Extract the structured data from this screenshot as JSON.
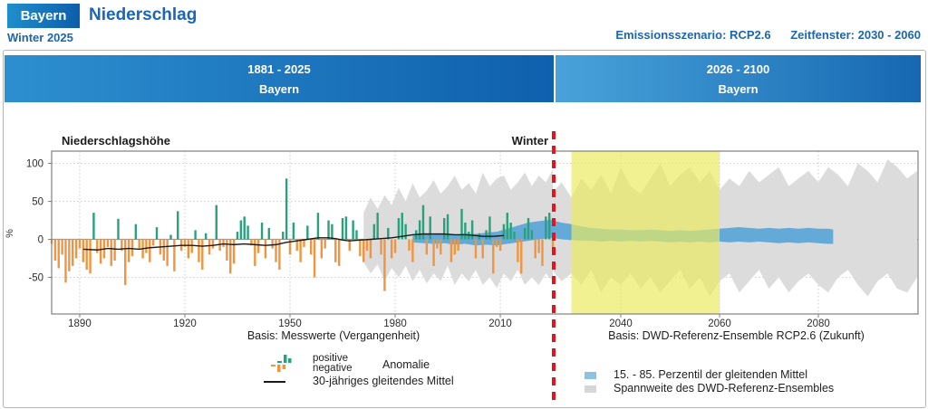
{
  "header": {
    "badge": "Bayern",
    "title": "Niederschlag",
    "subtitle": "Winter 2025",
    "scenario": "Emissionsszenario: RCP2.6",
    "time_window": "Zeitfenster: 2030 - 2060"
  },
  "panels": [
    {
      "period": "1881 - 2025",
      "region": "Bayern"
    },
    {
      "period": "2026 - 2100",
      "region": "Bayern"
    }
  ],
  "legend": {
    "positive": "positive",
    "negative": "negative",
    "anomaly": "Anomalie",
    "moving_mean": "30-jähriges gleitendes Mittel",
    "percentile": "15. - 85. Perzentil der gleitenden Mittel",
    "ensemble": "Spannweite des DWD-Referenz-Ensembles"
  },
  "colors": {
    "accent_blue": "#1b66b2",
    "bar_positive": "#2aa17c",
    "bar_negative": "#ef9540",
    "percentile_band": "#64aad8",
    "ensemble_band": "#dcdcdc",
    "moving_mean_line": "#1a1a1a",
    "divider_red": "#e8111c",
    "highlight_yellow": "rgba(235,235,94,0.68)",
    "grid": "#cccccc",
    "zero_line": "#9a9a9a",
    "frame": "#808080"
  },
  "chart_data": {
    "type": "bar",
    "title": "Niederschlagshöhe",
    "season_label": "Winter",
    "ylabel": "%",
    "yticks": [
      100,
      50,
      0,
      -50
    ],
    "ylim": [
      -98,
      115
    ],
    "past": {
      "label": "Basis: Messwerte (Vergangenheit)",
      "range": [
        1881,
        2025
      ],
      "xticks": [
        1890,
        1920,
        1950,
        1980,
        2010
      ],
      "bars": {
        "start_year": 1882,
        "values": [
          -6,
          -28,
          -38,
          -20,
          -57,
          -42,
          -35,
          -25,
          -12,
          -30,
          -40,
          -45,
          35,
          -18,
          -32,
          -25,
          -10,
          -35,
          -28,
          27,
          -15,
          -60,
          -30,
          -22,
          20,
          -12,
          -25,
          -18,
          -30,
          -8,
          16,
          -20,
          -28,
          -35,
          6,
          -42,
          37,
          -15,
          -10,
          -25,
          -18,
          12,
          -30,
          -40,
          8,
          -20,
          -12,
          45,
          -15,
          -10,
          -28,
          -45,
          -32,
          10,
          25,
          30,
          18,
          -8,
          -35,
          -18,
          22,
          -25,
          15,
          -12,
          -30,
          -40,
          10,
          80,
          -20,
          22,
          -15,
          -30,
          -10,
          18,
          -20,
          -50,
          35,
          -25,
          -12,
          25,
          20,
          -30,
          -35,
          28,
          30,
          -15,
          25,
          12,
          -22,
          -30,
          -15,
          -25,
          20,
          35,
          -20,
          -68,
          15,
          -25,
          -18,
          28,
          35,
          20,
          -15,
          -30,
          12,
          25,
          45,
          -20,
          30,
          -35,
          -12,
          -20,
          28,
          33,
          -30,
          -20,
          -15,
          40,
          22,
          10,
          25,
          -25,
          8,
          -25,
          12,
          30,
          -45,
          -10,
          -15,
          20,
          35,
          22,
          10,
          -30,
          -45,
          15,
          28,
          12,
          -25,
          -18,
          -35,
          30,
          35,
          -10
        ]
      },
      "moving_mean": [
        [
          1891,
          -13
        ],
        [
          1895,
          -14
        ],
        [
          1898,
          -12
        ],
        [
          1901,
          -13
        ],
        [
          1904,
          -12
        ],
        [
          1907,
          -13
        ],
        [
          1910,
          -11
        ],
        [
          1913,
          -10
        ],
        [
          1916,
          -9
        ],
        [
          1919,
          -8
        ],
        [
          1922,
          -8
        ],
        [
          1925,
          -9
        ],
        [
          1928,
          -8
        ],
        [
          1931,
          -6
        ],
        [
          1934,
          -7
        ],
        [
          1937,
          -6
        ],
        [
          1940,
          -7
        ],
        [
          1943,
          -8
        ],
        [
          1946,
          -7
        ],
        [
          1949,
          -4
        ],
        [
          1952,
          -2
        ],
        [
          1955,
          0
        ],
        [
          1958,
          2
        ],
        [
          1961,
          2
        ],
        [
          1963,
          1
        ],
        [
          1965,
          -1
        ],
        [
          1967,
          -2
        ],
        [
          1970,
          -1
        ],
        [
          1973,
          0
        ],
        [
          1976,
          1
        ],
        [
          1979,
          2
        ],
        [
          1982,
          4
        ],
        [
          1985,
          6
        ],
        [
          1988,
          7
        ],
        [
          1991,
          7
        ],
        [
          1994,
          7
        ],
        [
          1997,
          6
        ],
        [
          2000,
          6
        ],
        [
          2003,
          5
        ],
        [
          2005,
          4
        ],
        [
          2008,
          4
        ],
        [
          2011,
          5
        ]
      ],
      "ensemble_range": [
        [
          1971,
          -30,
          35
        ],
        [
          1973,
          -45,
          55
        ],
        [
          1975,
          -33,
          40
        ],
        [
          1977,
          -55,
          58
        ],
        [
          1979,
          -38,
          45
        ],
        [
          1981,
          -50,
          68
        ],
        [
          1983,
          -35,
          50
        ],
        [
          1985,
          -55,
          74
        ],
        [
          1987,
          -40,
          55
        ],
        [
          1989,
          -58,
          64
        ],
        [
          1991,
          -45,
          78
        ],
        [
          1993,
          -55,
          60
        ],
        [
          1995,
          -35,
          70
        ],
        [
          1997,
          -60,
          84
        ],
        [
          1999,
          -45,
          65
        ],
        [
          2001,
          -55,
          74
        ],
        [
          2003,
          -40,
          60
        ],
        [
          2005,
          -60,
          88
        ],
        [
          2007,
          -50,
          70
        ],
        [
          2009,
          -64,
          80
        ],
        [
          2011,
          -45,
          84
        ],
        [
          2013,
          -55,
          65
        ],
        [
          2015,
          -40,
          75
        ],
        [
          2017,
          -60,
          88
        ],
        [
          2019,
          -50,
          70
        ],
        [
          2021,
          -60,
          84
        ],
        [
          2023,
          -45,
          75
        ],
        [
          2025,
          -55,
          92
        ]
      ],
      "percentile_band": [
        [
          1985,
          -4,
          5
        ],
        [
          1988,
          -5,
          7
        ],
        [
          1991,
          -6,
          6
        ],
        [
          1994,
          -5,
          8
        ],
        [
          1997,
          -7,
          6
        ],
        [
          2000,
          -6,
          8
        ],
        [
          2003,
          -8,
          7
        ],
        [
          2006,
          -7,
          9
        ],
        [
          2009,
          -8,
          10
        ],
        [
          2012,
          -6,
          14
        ],
        [
          2015,
          -4,
          18
        ],
        [
          2018,
          -2,
          22
        ],
        [
          2021,
          0,
          24
        ],
        [
          2023,
          1,
          25
        ],
        [
          2025,
          2,
          26
        ]
      ]
    },
    "future": {
      "label": "Basis: DWD-Referenz-Ensemble RCP2.6 (Zukunft)",
      "range": [
        2026,
        2100
      ],
      "xticks": [
        2040,
        2060,
        2080
      ],
      "highlight_window": [
        2030,
        2060
      ],
      "ensemble_range": [
        [
          2026,
          -40,
          60
        ],
        [
          2028,
          -55,
          75
        ],
        [
          2030,
          -45,
          55
        ],
        [
          2032,
          -60,
          80
        ],
        [
          2034,
          -40,
          65
        ],
        [
          2036,
          -70,
          85
        ],
        [
          2038,
          -50,
          60
        ],
        [
          2040,
          -60,
          95
        ],
        [
          2042,
          -45,
          70
        ],
        [
          2044,
          -65,
          60
        ],
        [
          2046,
          -50,
          80
        ],
        [
          2048,
          -70,
          100
        ],
        [
          2050,
          -55,
          70
        ],
        [
          2052,
          -40,
          85
        ],
        [
          2054,
          -65,
          95
        ],
        [
          2056,
          -50,
          75
        ],
        [
          2058,
          -75,
          90
        ],
        [
          2060,
          -55,
          65
        ],
        [
          2062,
          -45,
          80
        ],
        [
          2064,
          -70,
          70
        ],
        [
          2066,
          -55,
          90
        ],
        [
          2068,
          -40,
          75
        ],
        [
          2070,
          -65,
          85
        ],
        [
          2072,
          -50,
          95
        ],
        [
          2074,
          -70,
          70
        ],
        [
          2076,
          -55,
          80
        ],
        [
          2078,
          -45,
          90
        ],
        [
          2080,
          -60,
          75
        ],
        [
          2082,
          -70,
          95
        ],
        [
          2084,
          -50,
          85
        ],
        [
          2086,
          -40,
          70
        ],
        [
          2088,
          -60,
          100
        ],
        [
          2090,
          -75,
          90
        ],
        [
          2092,
          -55,
          75
        ],
        [
          2094,
          -45,
          105
        ],
        [
          2096,
          -65,
          95
        ],
        [
          2098,
          -70,
          80
        ],
        [
          2100,
          -50,
          90
        ]
      ],
      "percentile_band": [
        [
          2026,
          2,
          25
        ],
        [
          2028,
          0,
          22
        ],
        [
          2030,
          -1,
          20
        ],
        [
          2032,
          -2,
          17
        ],
        [
          2034,
          -2,
          15
        ],
        [
          2036,
          -3,
          14
        ],
        [
          2038,
          -2,
          13
        ],
        [
          2040,
          -3,
          13
        ],
        [
          2042,
          -2,
          12
        ],
        [
          2044,
          -3,
          12
        ],
        [
          2046,
          -2,
          13
        ],
        [
          2048,
          -3,
          12
        ],
        [
          2050,
          -4,
          11
        ],
        [
          2052,
          -3,
          12
        ],
        [
          2054,
          -4,
          11
        ],
        [
          2056,
          -3,
          12
        ],
        [
          2058,
          -4,
          13
        ],
        [
          2060,
          -3,
          14
        ],
        [
          2062,
          -4,
          15
        ],
        [
          2064,
          -3,
          16
        ],
        [
          2066,
          -4,
          15
        ],
        [
          2068,
          -3,
          14
        ],
        [
          2070,
          -4,
          15
        ],
        [
          2072,
          -5,
          14
        ],
        [
          2074,
          -4,
          15
        ],
        [
          2076,
          -5,
          14
        ],
        [
          2078,
          -4,
          15
        ],
        [
          2080,
          -5,
          14
        ],
        [
          2082,
          -6,
          14
        ],
        [
          2083,
          -6,
          13
        ]
      ]
    },
    "divider_year": 2025.5
  }
}
